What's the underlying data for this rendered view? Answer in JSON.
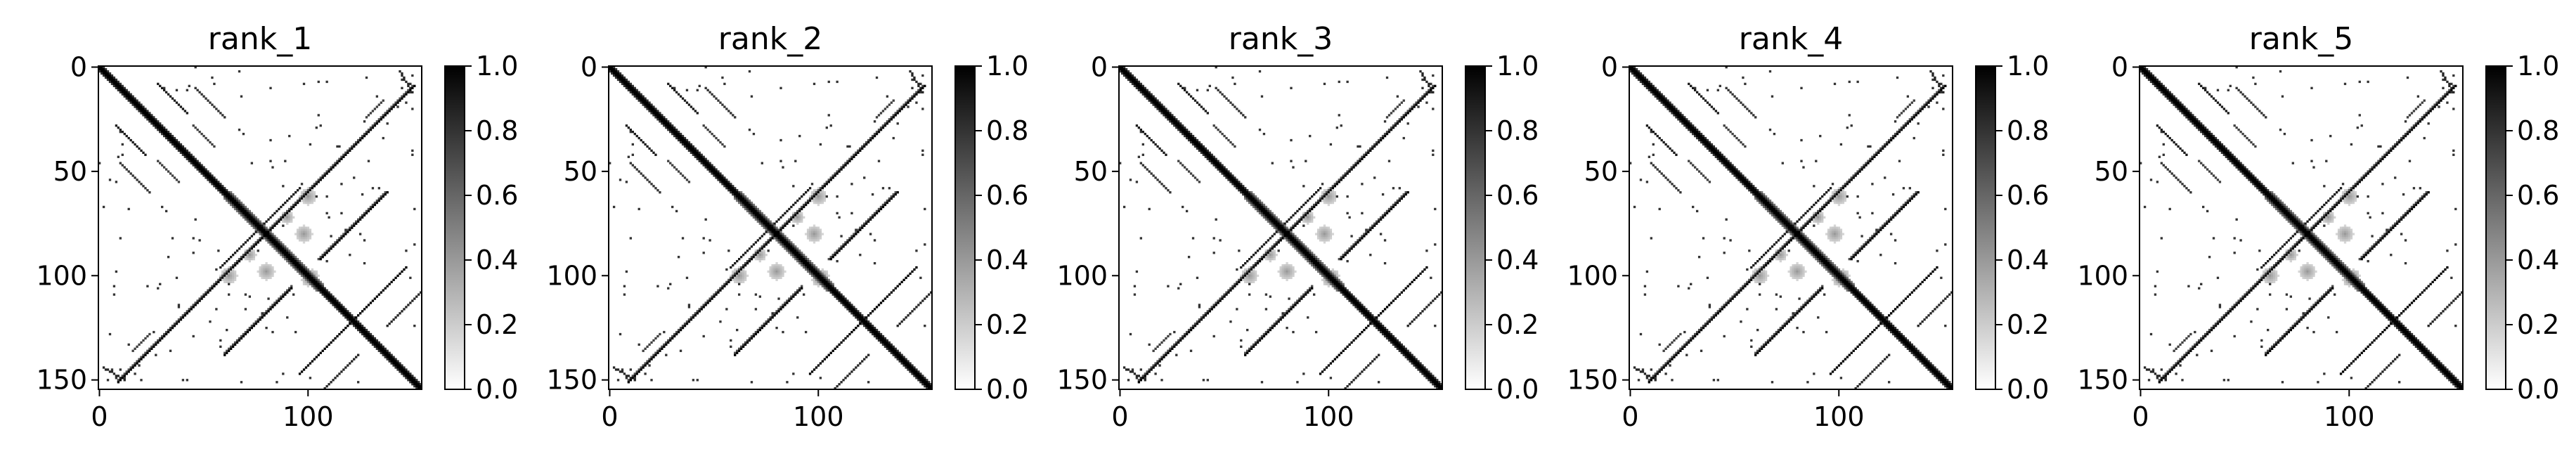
{
  "chart_data": [
    {
      "type": "heatmap",
      "title": "rank_1",
      "xticks": [
        "0",
        "100"
      ],
      "yticks": [
        "0",
        "50",
        "100",
        "150"
      ],
      "xlim": [
        0,
        155
      ],
      "ylim": [
        155,
        0
      ],
      "colorbar": {
        "ticks": [
          "0.0",
          "0.2",
          "0.4",
          "0.6",
          "0.8",
          "1.0"
        ],
        "range": [
          0,
          1
        ],
        "cmap": "Greys"
      },
      "size": 155
    },
    {
      "type": "heatmap",
      "title": "rank_2",
      "xticks": [
        "0",
        "100"
      ],
      "yticks": [
        "0",
        "50",
        "100",
        "150"
      ],
      "xlim": [
        0,
        155
      ],
      "ylim": [
        155,
        0
      ],
      "colorbar": {
        "ticks": [
          "0.0",
          "0.2",
          "0.4",
          "0.6",
          "0.8",
          "1.0"
        ],
        "range": [
          0,
          1
        ],
        "cmap": "Greys"
      },
      "size": 155
    },
    {
      "type": "heatmap",
      "title": "rank_3",
      "xticks": [
        "0",
        "100"
      ],
      "yticks": [
        "0",
        "50",
        "100",
        "150"
      ],
      "xlim": [
        0,
        155
      ],
      "ylim": [
        155,
        0
      ],
      "colorbar": {
        "ticks": [
          "0.0",
          "0.2",
          "0.4",
          "0.6",
          "0.8",
          "1.0"
        ],
        "range": [
          0,
          1
        ],
        "cmap": "Greys"
      },
      "size": 155
    },
    {
      "type": "heatmap",
      "title": "rank_4",
      "xticks": [
        "0",
        "100"
      ],
      "yticks": [
        "0",
        "50",
        "100",
        "150"
      ],
      "xlim": [
        0,
        155
      ],
      "ylim": [
        155,
        0
      ],
      "colorbar": {
        "ticks": [
          "0.0",
          "0.2",
          "0.4",
          "0.6",
          "0.8",
          "1.0"
        ],
        "range": [
          0,
          1
        ],
        "cmap": "Greys"
      },
      "size": 155
    },
    {
      "type": "heatmap",
      "title": "rank_5",
      "xticks": [
        "0",
        "100"
      ],
      "yticks": [
        "0",
        "50",
        "100",
        "150"
      ],
      "xlim": [
        0,
        155
      ],
      "ylim": [
        155,
        0
      ],
      "colorbar": {
        "ticks": [
          "0.0",
          "0.2",
          "0.4",
          "0.6",
          "0.8",
          "1.0"
        ],
        "range": [
          0,
          1
        ],
        "cmap": "Greys"
      },
      "size": 155
    }
  ]
}
